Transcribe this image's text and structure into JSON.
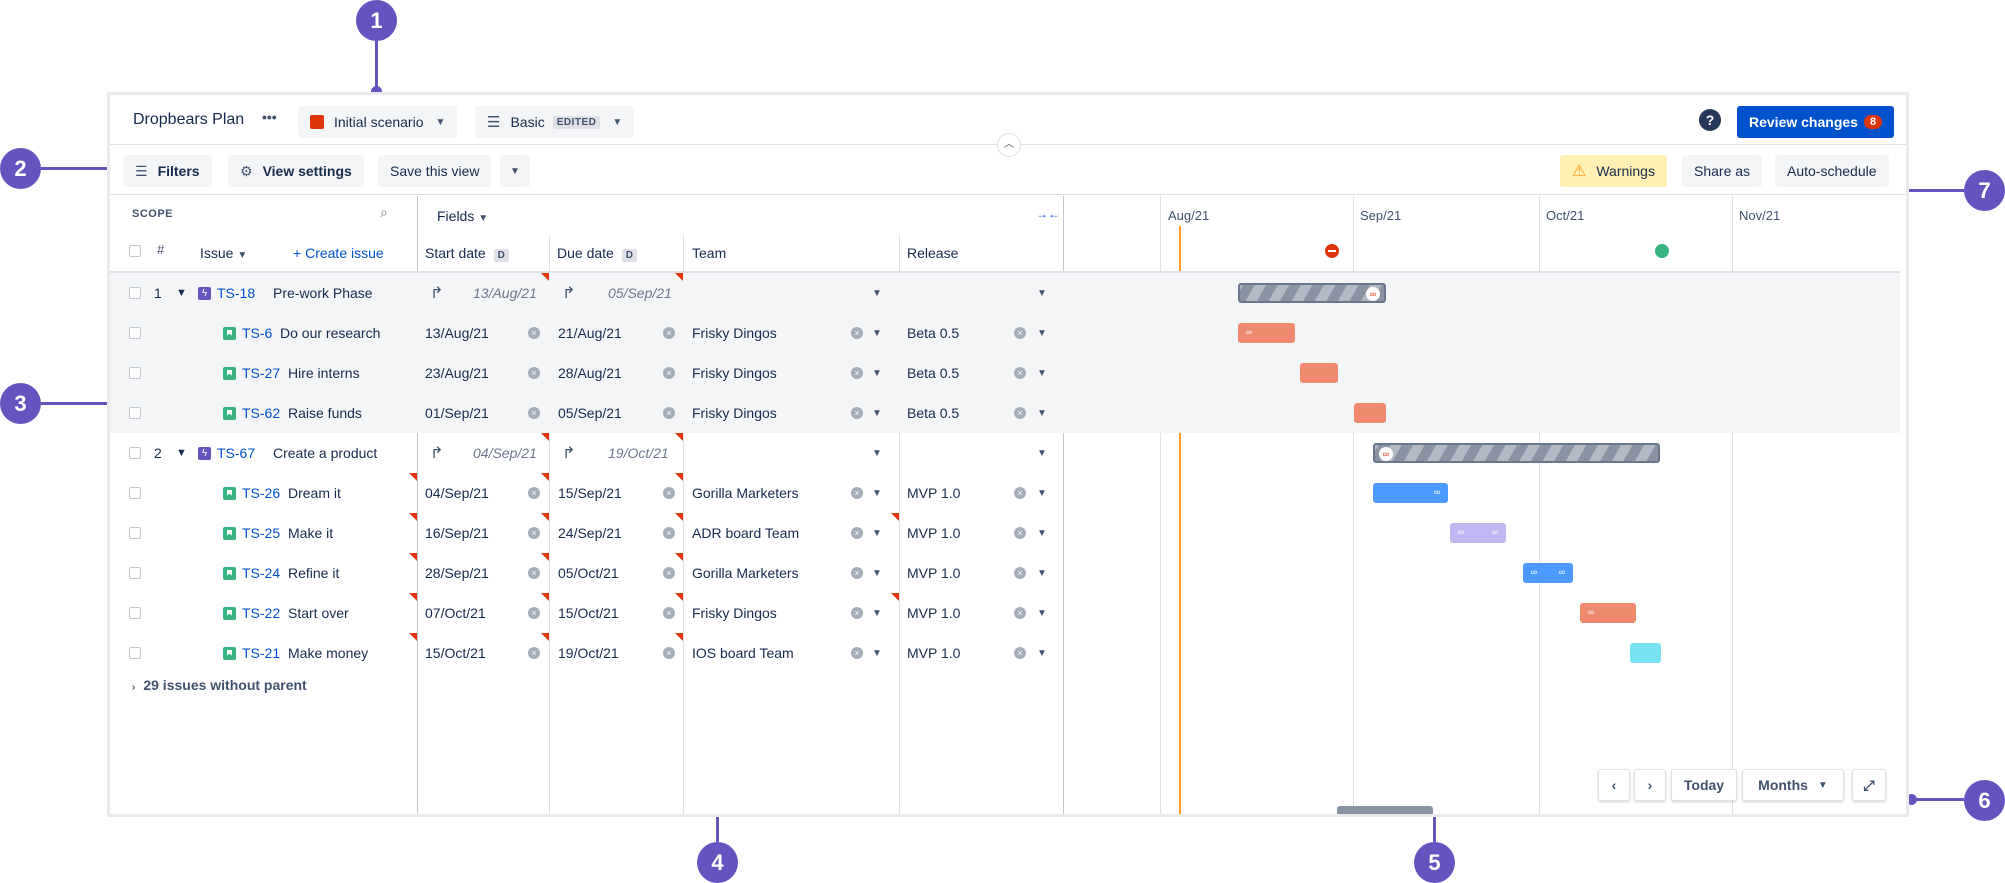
{
  "callouts": [
    "1",
    "2",
    "3",
    "4",
    "5",
    "6",
    "7"
  ],
  "plan": {
    "title": "Dropbears Plan",
    "more": "•••",
    "scenario": "Initial scenario",
    "view_name": "Basic",
    "view_badge": "EDITED",
    "help": "?",
    "review_label": "Review changes",
    "review_count": "8"
  },
  "toolbar": {
    "filters": "Filters",
    "view_settings": "View settings",
    "save_view": "Save this view",
    "warnings": "Warnings",
    "share": "Share as",
    "auto_schedule": "Auto-schedule"
  },
  "scope": {
    "label": "SCOPE",
    "hash": "#",
    "issue_col": "Issue",
    "create_issue": "Create issue",
    "fields": "Fields",
    "start_date": "Start date",
    "due_date": "Due date",
    "date_badge": "D",
    "team": "Team",
    "release": "Release",
    "without_parent": "29 issues without parent"
  },
  "timeline": {
    "months": [
      "Aug/21",
      "Sep/21",
      "Oct/21",
      "Nov/21"
    ]
  },
  "rows": [
    {
      "num": "1",
      "key": "TS-18",
      "title": "Pre-work Phase",
      "start": "13/Aug/21",
      "due": "05/Sep/21",
      "team": "",
      "release": "",
      "kind": "epic"
    },
    {
      "num": "",
      "key": "TS-6",
      "title": "Do our research",
      "start": "13/Aug/21",
      "due": "21/Aug/21",
      "team": "Frisky Dingos",
      "release": "Beta 0.5",
      "kind": "story"
    },
    {
      "num": "",
      "key": "TS-27",
      "title": "Hire interns",
      "start": "23/Aug/21",
      "due": "28/Aug/21",
      "team": "Frisky Dingos",
      "release": "Beta 0.5",
      "kind": "story"
    },
    {
      "num": "",
      "key": "TS-62",
      "title": "Raise funds",
      "start": "01/Sep/21",
      "due": "05/Sep/21",
      "team": "Frisky Dingos",
      "release": "Beta 0.5",
      "kind": "story"
    },
    {
      "num": "2",
      "key": "TS-67",
      "title": "Create a product",
      "start": "04/Sep/21",
      "due": "19/Oct/21",
      "team": "",
      "release": "",
      "kind": "epic"
    },
    {
      "num": "",
      "key": "TS-26",
      "title": "Dream it",
      "start": "04/Sep/21",
      "due": "15/Sep/21",
      "team": "Gorilla Marketers",
      "release": "MVP 1.0",
      "kind": "story"
    },
    {
      "num": "",
      "key": "TS-25",
      "title": "Make it",
      "start": "16/Sep/21",
      "due": "24/Sep/21",
      "team": "ADR board Team",
      "release": "MVP 1.0",
      "kind": "story"
    },
    {
      "num": "",
      "key": "TS-24",
      "title": "Refine it",
      "start": "28/Sep/21",
      "due": "05/Oct/21",
      "team": "Gorilla Marketers",
      "release": "MVP 1.0",
      "kind": "story"
    },
    {
      "num": "",
      "key": "TS-22",
      "title": "Start over",
      "start": "07/Oct/21",
      "due": "15/Oct/21",
      "team": "Frisky Dingos",
      "release": "MVP 1.0",
      "kind": "story"
    },
    {
      "num": "",
      "key": "TS-21",
      "title": "Make money",
      "start": "15/Oct/21",
      "due": "19/Oct/21",
      "team": "IOS board Team",
      "release": "MVP 1.0",
      "kind": "story"
    }
  ],
  "nav": {
    "today": "Today",
    "scale": "Months"
  }
}
